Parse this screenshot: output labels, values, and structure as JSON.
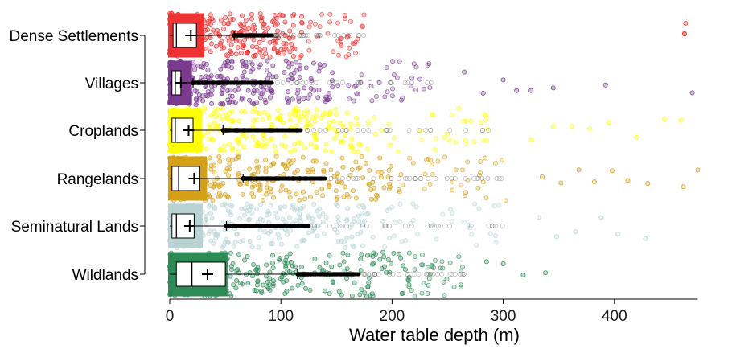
{
  "chart_data": {
    "type": "boxplot",
    "orientation": "horizontal",
    "xlabel": "Water table depth (m)",
    "xlim": [
      0,
      475
    ],
    "xticks": [
      0,
      100,
      200,
      300,
      400
    ],
    "grid": false,
    "legend": "none",
    "categories": [
      {
        "name": "Dense Settlements",
        "color": "#ee3333",
        "stats": {
          "min": 0,
          "q1": 3,
          "median": 6,
          "q3": 24,
          "mean": 19,
          "whisker_high": 58
        },
        "dense_max": 120,
        "sparse_max": 175,
        "outliers": [
          463,
          463,
          464
        ]
      },
      {
        "name": "Villages",
        "color": "#7a3b8f",
        "stats": {
          "min": 0,
          "q1": 2,
          "median": 5,
          "q3": 10,
          "mean": 10,
          "whisker_high": 21
        },
        "dense_max": 150,
        "sparse_max": 235,
        "outliers": [
          265,
          282,
          300,
          312,
          325,
          345,
          392,
          470
        ]
      },
      {
        "name": "Croplands",
        "color": "#ffff00",
        "stats": {
          "min": 0,
          "q1": 2,
          "median": 5,
          "q3": 21,
          "mean": 17,
          "whisker_high": 48
        },
        "dense_max": 175,
        "sparse_max": 295,
        "outliers": [
          325,
          345,
          362,
          378,
          395,
          420,
          445,
          460
        ]
      },
      {
        "name": "Rangelands",
        "color": "#d4a017",
        "stats": {
          "min": 0,
          "q1": 2,
          "median": 8,
          "q3": 27,
          "mean": 22,
          "whisker_high": 66
        },
        "dense_max": 200,
        "sparse_max": 310,
        "outliers": [
          335,
          352,
          368,
          382,
          398,
          412,
          430,
          462,
          475
        ]
      },
      {
        "name": "Seminatural Lands",
        "color": "#b9d3d3",
        "stats": {
          "min": 0,
          "q1": 2,
          "median": 6,
          "q3": 22,
          "mean": 18,
          "whisker_high": 51
        },
        "dense_max": 185,
        "sparse_max": 300,
        "outliers": [
          332,
          348,
          365,
          388,
          403,
          428
        ]
      },
      {
        "name": "Wildlands",
        "color": "#2e8b57",
        "stats": {
          "min": 0,
          "q1": 6,
          "median": 20,
          "q3": 50,
          "mean": 34,
          "whisker_high": 115
        },
        "dense_max": 215,
        "sparse_max": 265,
        "outliers": [
          285,
          300,
          318,
          338
        ]
      }
    ]
  }
}
